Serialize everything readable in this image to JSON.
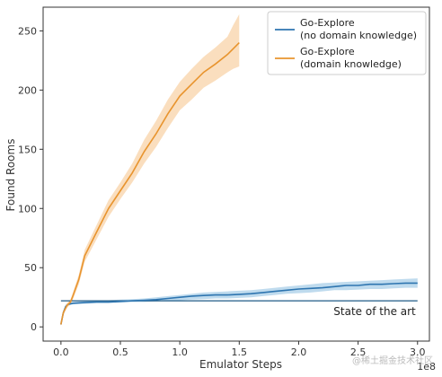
{
  "chart_data": {
    "type": "line",
    "xlabel": "Emulator Steps",
    "ylabel": "Found Rooms",
    "x_scale_label": "1e8",
    "xlim": [
      -0.15,
      3.1
    ],
    "ylim": [
      -12,
      270
    ],
    "x_ticks": [
      0.0,
      0.5,
      1.0,
      1.5,
      2.0,
      2.5,
      3.0
    ],
    "x_tick_labels": [
      "0.0",
      "0.5",
      "1.0",
      "1.5",
      "2.0",
      "2.5",
      "3.0"
    ],
    "y_ticks": [
      0,
      50,
      100,
      150,
      200,
      250
    ],
    "y_tick_labels": [
      "0",
      "50",
      "100",
      "150",
      "200",
      "250"
    ],
    "grid": false,
    "legend_position": "top-right",
    "legend": [
      {
        "series": 0,
        "lines": [
          "Go-Explore",
          "(no domain knowledge)"
        ]
      },
      {
        "series": 1,
        "lines": [
          "Go-Explore",
          "(domain knowledge)"
        ]
      }
    ],
    "series": [
      {
        "color": "#2e75b0",
        "band_color": "#a9cfe8",
        "x": [
          0.0,
          0.02,
          0.04,
          0.06,
          0.1,
          0.2,
          0.3,
          0.4,
          0.5,
          0.6,
          0.7,
          0.8,
          0.9,
          1.0,
          1.1,
          1.2,
          1.3,
          1.4,
          1.5,
          1.6,
          1.7,
          1.8,
          1.9,
          2.0,
          2.1,
          2.2,
          2.3,
          2.4,
          2.5,
          2.6,
          2.7,
          2.8,
          2.9,
          3.0
        ],
        "values": [
          2,
          12,
          17,
          19,
          20,
          20.5,
          21,
          21,
          21.5,
          22,
          22.5,
          23,
          24,
          25,
          26,
          26.5,
          27,
          27,
          27.5,
          28,
          29,
          30,
          31,
          32,
          32.5,
          33,
          34,
          35,
          35,
          36,
          36,
          36.5,
          37,
          37
        ],
        "lower": [
          1,
          10,
          15,
          18,
          19,
          19.5,
          20,
          20,
          20.5,
          21,
          21,
          21.5,
          22,
          22.5,
          23,
          23.5,
          24,
          24,
          24.5,
          25,
          26,
          27,
          28,
          28.5,
          29,
          30,
          31,
          31,
          31.5,
          32,
          32,
          32.5,
          33,
          33
        ],
        "upper": [
          3,
          14,
          19,
          20,
          21,
          21.5,
          22,
          22.5,
          23,
          23.5,
          24,
          25,
          26,
          27,
          28,
          29,
          29.5,
          30,
          30.5,
          31,
          32,
          33,
          34,
          35,
          36,
          37,
          37.5,
          38,
          38.5,
          39,
          39.5,
          40,
          40.5,
          41
        ]
      },
      {
        "color": "#e8942e",
        "band_color": "#f8d3a8",
        "x": [
          0.0,
          0.02,
          0.05,
          0.08,
          0.1,
          0.15,
          0.2,
          0.3,
          0.4,
          0.5,
          0.6,
          0.7,
          0.8,
          0.9,
          1.0,
          1.1,
          1.2,
          1.3,
          1.4,
          1.45,
          1.5
        ],
        "values": [
          2,
          12,
          18,
          21,
          26,
          40,
          60,
          80,
          100,
          115,
          130,
          148,
          163,
          180,
          195,
          205,
          215,
          222,
          230,
          235,
          240
        ],
        "lower": [
          1,
          10,
          16,
          19,
          23,
          36,
          55,
          74,
          93,
          108,
          122,
          138,
          152,
          168,
          183,
          192,
          202,
          208,
          215,
          218,
          220
        ],
        "upper": [
          3,
          14,
          20,
          23,
          29,
          44,
          65,
          86,
          107,
          122,
          138,
          158,
          174,
          192,
          207,
          218,
          228,
          236,
          245,
          255,
          264
        ]
      }
    ],
    "reference_line": {
      "y": 22,
      "x_start": 0.0,
      "x_end": 3.0,
      "color": "#1f5a85"
    },
    "annotations": [
      {
        "text": "State of the art",
        "x": 3.0,
        "y": 22
      }
    ],
    "watermark": "@稀土掘金技术社区"
  }
}
